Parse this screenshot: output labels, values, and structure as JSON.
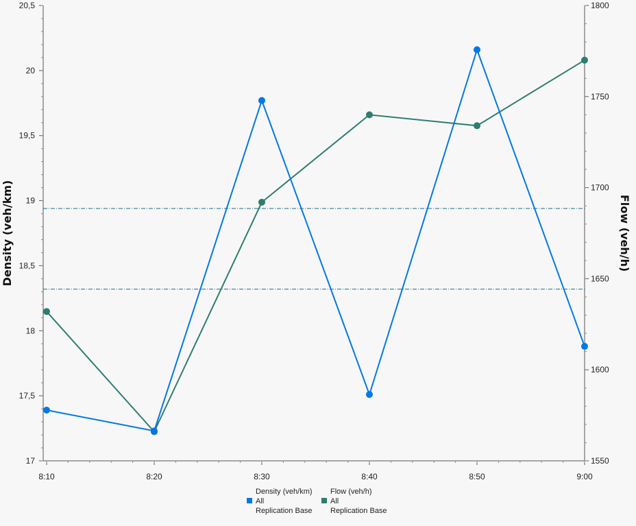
{
  "chart_data": {
    "type": "line",
    "categories": [
      "8:10",
      "8:20",
      "8:30",
      "8:40",
      "8:50",
      "9:00"
    ],
    "left_axis": {
      "label": "Density (veh/km)",
      "ylim": [
        17,
        20.5
      ],
      "ticks": [
        "17",
        "17,5",
        "18",
        "18,5",
        "19",
        "19,5",
        "20",
        "20,5"
      ]
    },
    "right_axis": {
      "label": "Flow (veh/h)",
      "ylim": [
        1550,
        1800
      ],
      "ticks": [
        "1550",
        "1600",
        "1650",
        "1700",
        "1750",
        "1800"
      ]
    },
    "series": [
      {
        "name": "Density (veh/km)",
        "axis": "left",
        "color": "#0078e6",
        "values": [
          17.39,
          17.23,
          19.77,
          17.51,
          20.16,
          17.88
        ],
        "legend_lines": [
          "Density (veh/km)",
          "All",
          "Replication Base"
        ]
      },
      {
        "name": "Flow (veh/h)",
        "axis": "right",
        "color": "#2e7d6e",
        "values": [
          1632,
          1566,
          1692,
          1740,
          1734,
          1770
        ],
        "legend_lines": [
          "Flow (veh/h)",
          "All",
          "Replication Base"
        ]
      }
    ],
    "reference_lines": [
      {
        "axis": "left",
        "value": 18.94,
        "color": "#1a6b8a"
      },
      {
        "axis": "left",
        "value": 18.32,
        "color": "#1a6b8a"
      }
    ],
    "grid": false,
    "legend_position": "bottom-center"
  }
}
